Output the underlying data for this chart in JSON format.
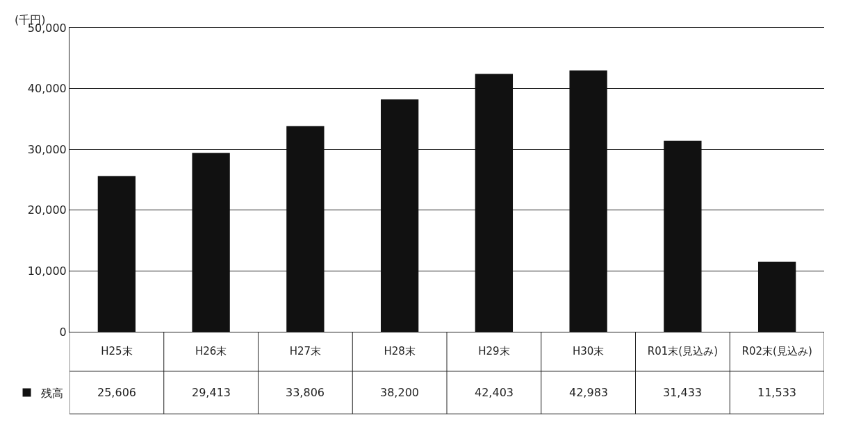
{
  "chart_data": {
    "type": "bar",
    "ylabel": "(千円)",
    "categories": [
      "H25末",
      "H26末",
      "H27末",
      "H28末",
      "H29末",
      "H30末",
      "R01末(見込み)",
      "R02末(見込み)"
    ],
    "series": [
      {
        "name": "残高",
        "color": "#111111",
        "values": [
          25606,
          29413,
          33806,
          38200,
          42403,
          42983,
          31433,
          11533
        ],
        "value_labels": [
          "25,606",
          "29,413",
          "33,806",
          "38,200",
          "42,403",
          "42,983",
          "31,433",
          "11,533"
        ]
      }
    ],
    "ylim": [
      0,
      50000
    ],
    "yticks": [
      0,
      {
        "value": 10000,
        "label": "10,000"
      },
      {
        "value": 20000,
        "label": "20,000"
      },
      {
        "value": 30000,
        "label": "30,000"
      },
      {
        "value": 40000,
        "label": "40,000"
      },
      {
        "value": 50000,
        "label": "50,000"
      }
    ],
    "grid": "y",
    "legend": "bottom left"
  }
}
